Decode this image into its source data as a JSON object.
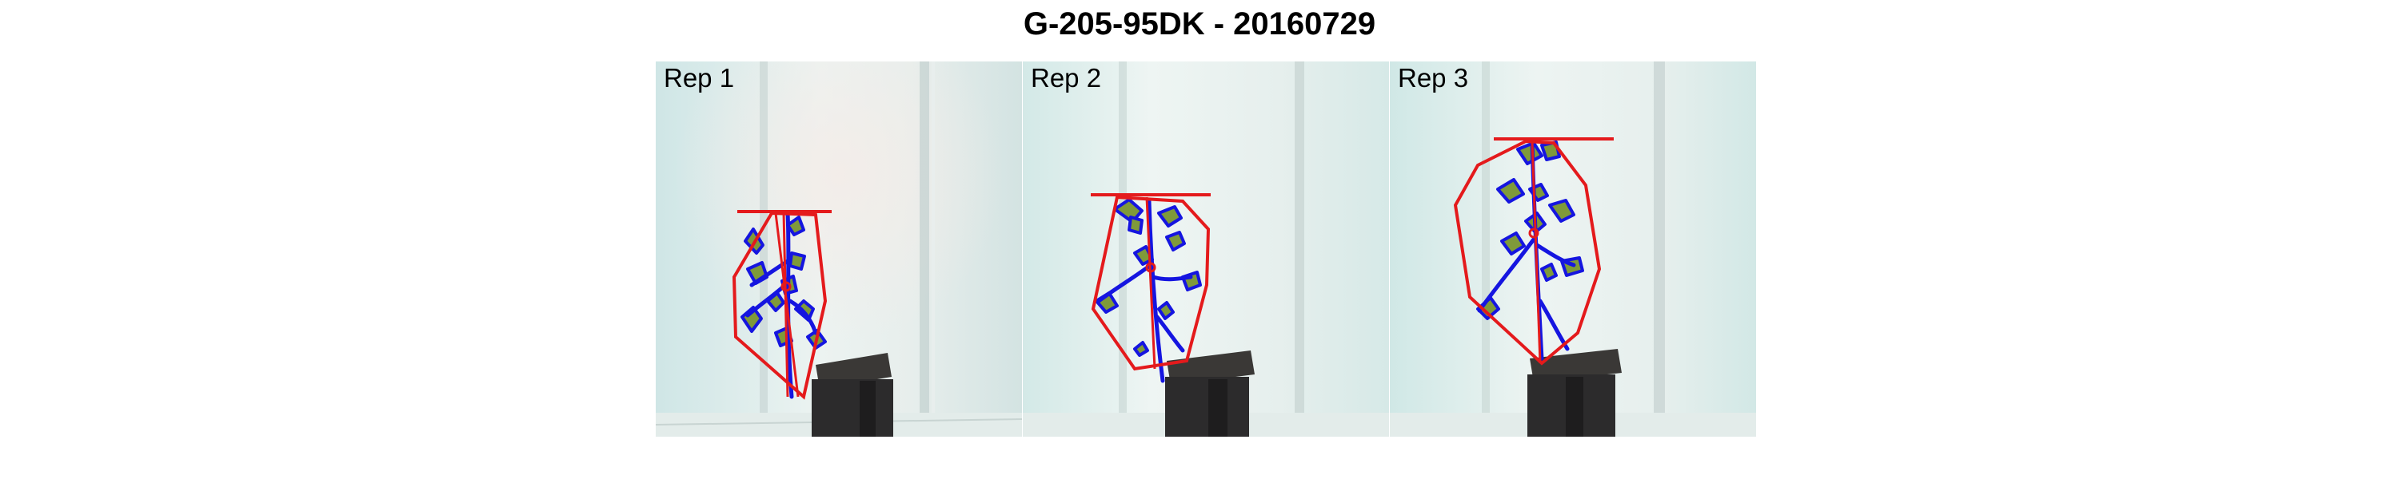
{
  "figure": {
    "title": "G-205-95DK - 20160729"
  },
  "panels": [
    {
      "label": "Rep 1"
    },
    {
      "label": "Rep 2"
    },
    {
      "label": "Rep 3"
    }
  ],
  "colors": {
    "hull_outline": "#e41a1c",
    "leaf_outline": "#1515e0",
    "leaf_fill": "#7f9a3a",
    "background": "#dcefee",
    "pot": "#2e2d2e"
  }
}
